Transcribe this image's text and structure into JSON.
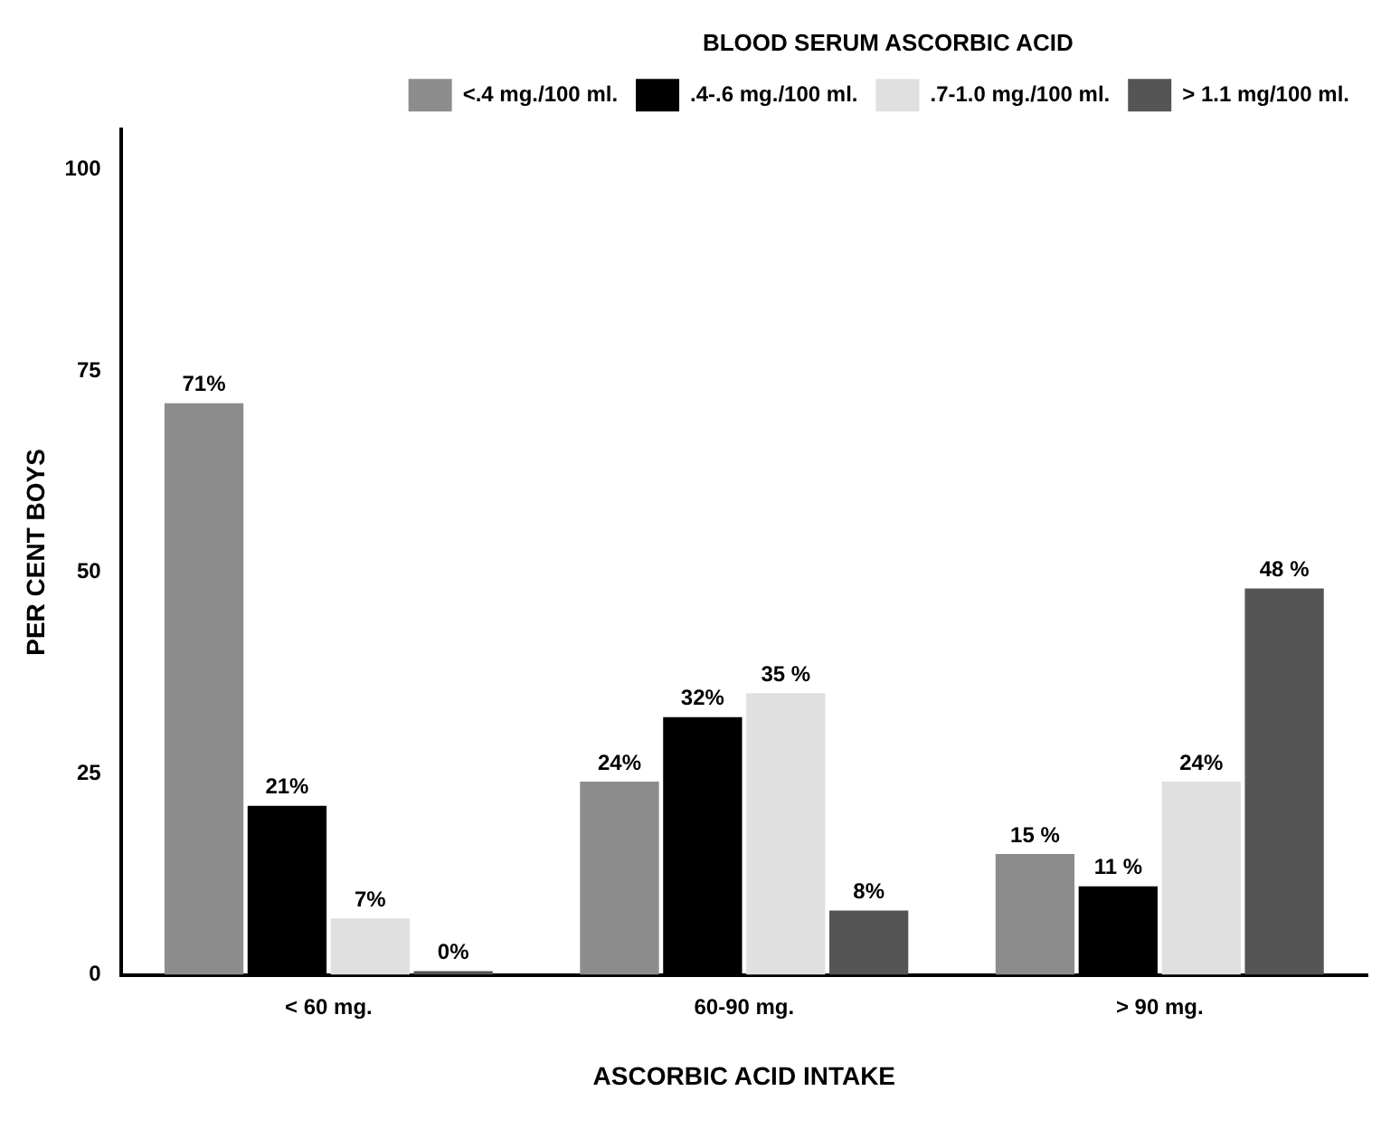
{
  "chart_data": {
    "type": "bar",
    "xlabel": "ASCORBIC ACID INTAKE",
    "ylabel": "PER CENT BOYS",
    "legend_title": "BLOOD SERUM ASCORBIC ACID",
    "categories": [
      "< 60 mg.",
      "60-90 mg.",
      "> 90 mg."
    ],
    "series": [
      {
        "name": "<.4 mg./100 ml.",
        "color": "#8c8c8c",
        "values": [
          71,
          24,
          15
        ],
        "value_labels": [
          "71%",
          "24%",
          "15 %"
        ]
      },
      {
        "name": ".4-.6 mg./100 ml.",
        "color": "#000000",
        "values": [
          21,
          32,
          11
        ],
        "value_labels": [
          "21%",
          "32%",
          "11 %"
        ]
      },
      {
        "name": ".7-1.0 mg./100 ml.",
        "color": "#e0e0e0",
        "values": [
          7,
          35,
          24
        ],
        "value_labels": [
          "7%",
          "35 %",
          "24%"
        ]
      },
      {
        "name": "> 1.1 mg/100 ml.",
        "color": "#555555",
        "values": [
          0,
          8,
          48
        ],
        "value_labels": [
          "0%",
          "8%",
          "48 %"
        ]
      }
    ],
    "ylim": [
      0,
      105
    ],
    "yticks": [
      0,
      25,
      50,
      75,
      100
    ],
    "grid": false,
    "legend": "top right"
  }
}
